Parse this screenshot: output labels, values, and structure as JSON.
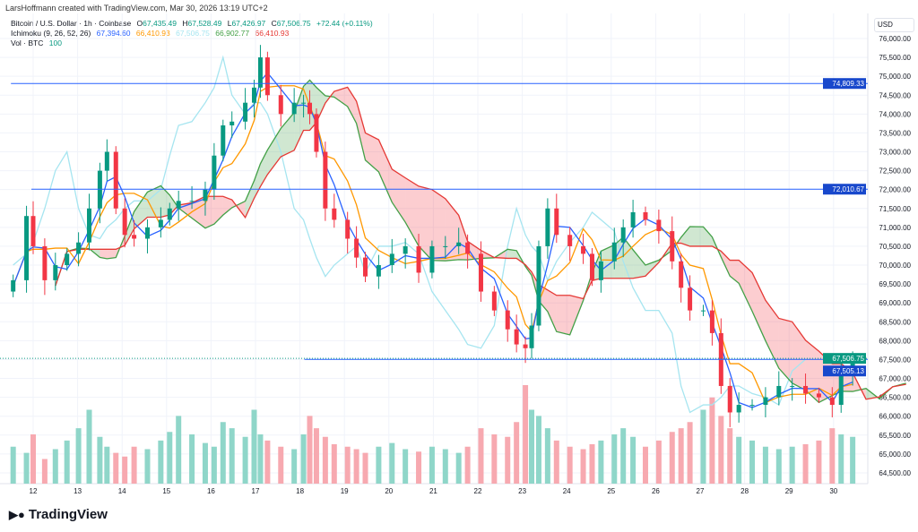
{
  "header": {
    "credit": "LarsHoffmann created with TradingView.com, Mar 30, 2026 13:19 UTC+2",
    "symbol": "Bitcoin / U.S. Dollar · 1h · Coinbase",
    "o_label": "O",
    "o": "67,435.49",
    "h_label": "H",
    "h": "67,528.49",
    "l_label": "L",
    "l": "67,426.97",
    "c_label": "C",
    "c": "67,506.75",
    "change": "+72.44 (+0.11%)",
    "ichimoku_label": "Ichimoku (9, 26, 52, 26)",
    "ich_values": [
      "67,394.60",
      "66,410.93",
      "67,506.75",
      "66,902.77",
      "66,410.93"
    ],
    "vol_label": "Vol · BTC",
    "vol_value": "100"
  },
  "currency": "USD",
  "logo": "TradingView",
  "colors": {
    "up": "#089981",
    "down": "#f23645",
    "conversion": "#2962ff",
    "base": "#ff9800",
    "lagging": "#a6e5f0",
    "spanA": "#43a047",
    "spanB": "#e53935",
    "hline": "#2962ff"
  },
  "chart_data": {
    "type": "candlestick",
    "x_unit": "day of March 2026",
    "ylim": [
      64300,
      76300
    ],
    "y_ticks": [
      76000,
      75500,
      75000,
      74500,
      74000,
      73500,
      73000,
      72500,
      72000,
      71500,
      71000,
      70500,
      70000,
      69500,
      69000,
      68500,
      68000,
      67500,
      67000,
      66500,
      66000,
      65500,
      65000,
      64500
    ],
    "y_tick_labels": [
      "76,000.00",
      "75,500.00",
      "75,000.00",
      "74,500.00",
      "74,000.00",
      "73,500.00",
      "73,000.00",
      "72,500.00",
      "72,000.00",
      "71,500.00",
      "71,000.00",
      "70,500.00",
      "70,000.00",
      "69,500.00",
      "69,000.00",
      "68,500.00",
      "68,000.00",
      "67,500.00",
      "67,000.00",
      "66,500.00",
      "66,000.00",
      "65,500.00",
      "65,000.00",
      "64,500.00"
    ],
    "x_ticks": [
      12,
      13,
      14,
      15,
      16,
      17,
      18,
      19,
      20,
      21,
      22,
      23,
      24,
      25,
      26,
      27,
      28,
      29,
      30
    ],
    "x_tick_labels": [
      "12",
      "13",
      "14",
      "15",
      "16",
      "17",
      "18",
      "19",
      "20",
      "21",
      "22",
      "23",
      "24",
      "25",
      "26",
      "27",
      "28",
      "29",
      "30"
    ],
    "xlim": [
      11.5,
      30.85
    ],
    "horizontal_lines": [
      {
        "value": 74809.33,
        "label": "74,809.33",
        "from": 11.5
      },
      {
        "value": 72010.67,
        "label": "72,010.67",
        "from": 11.96
      },
      {
        "value": 67505.13,
        "label": "67,505.13",
        "from": 18.1
      }
    ],
    "last_price": {
      "value": 67506.75,
      "label": "67,506.75"
    },
    "day": [
      11.55,
      11.85,
      12.0,
      12.26,
      12.5,
      12.76,
      13.02,
      13.26,
      13.5,
      13.66,
      13.86,
      14.06,
      14.27,
      14.57,
      14.87,
      15.07,
      15.27,
      15.57,
      15.87,
      16.07,
      16.27,
      16.47,
      16.77,
      16.97,
      17.11,
      17.27,
      17.57,
      17.87,
      18.08,
      18.22,
      18.37,
      18.57,
      18.77,
      19.07,
      19.27,
      19.47,
      19.77,
      20.07,
      20.37,
      20.67,
      20.97,
      21.27,
      21.57,
      21.77,
      22.07,
      22.37,
      22.67,
      22.87,
      23.07,
      23.21,
      23.37,
      23.57,
      23.77,
      24.07,
      24.37,
      24.57,
      24.77,
      25.07,
      25.27,
      25.49,
      25.77,
      26.07,
      26.37,
      26.57,
      26.77,
      27.07,
      27.27,
      27.47,
      27.67,
      27.87,
      28.17,
      28.47,
      28.77,
      29.07,
      29.37,
      29.67,
      29.97,
      30.17,
      30.43
    ],
    "close": [
      69600,
      71300,
      70500,
      69600,
      70000,
      70300,
      70600,
      71500,
      72500,
      73000,
      71500,
      70800,
      70700,
      71000,
      71200,
      71500,
      71700,
      71700,
      72000,
      72900,
      73700,
      73800,
      74300,
      74700,
      75500,
      74500,
      74000,
      74300,
      74300,
      74000,
      73000,
      71500,
      71200,
      70700,
      70200,
      69700,
      70000,
      70300,
      70500,
      69800,
      70500,
      70500,
      70600,
      70300,
      69300,
      68800,
      68300,
      67900,
      67800,
      68400,
      70500,
      71500,
      70800,
      70500,
      70300,
      69600,
      70100,
      70600,
      71000,
      71400,
      71200,
      70900,
      70100,
      69400,
      68800,
      68800,
      68200,
      66800,
      66100,
      66300,
      66300,
      66500,
      66800,
      66800,
      66600,
      66500,
      66300,
      67200,
      67507
    ],
    "volume": [
      30,
      25,
      40,
      20,
      28,
      35,
      45,
      60,
      38,
      30,
      25,
      22,
      30,
      28,
      35,
      42,
      55,
      40,
      33,
      30,
      50,
      45,
      38,
      60,
      40,
      35,
      30,
      28,
      40,
      55,
      45,
      38,
      32,
      30,
      28,
      25,
      30,
      33,
      28,
      26,
      30,
      28,
      25,
      30,
      45,
      40,
      38,
      50,
      80,
      60,
      55,
      45,
      35,
      30,
      28,
      32,
      35,
      40,
      45,
      38,
      30,
      35,
      42,
      45,
      50,
      60,
      70,
      55,
      45,
      38,
      35,
      30,
      28,
      30,
      32,
      35,
      45,
      40,
      38
    ]
  }
}
